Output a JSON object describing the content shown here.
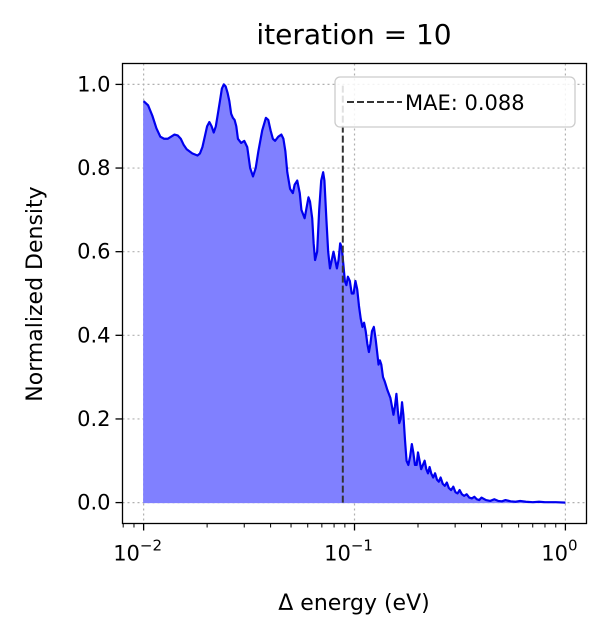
{
  "chart_data": {
    "type": "area",
    "title": "iteration = 10",
    "xlabel": "Δ energy (eV)",
    "ylabel": "Normalized Density",
    "xscale": "log",
    "xlim": [
      0.00794,
      1.259
    ],
    "ylim": [
      -0.05,
      1.05
    ],
    "xticks": [
      {
        "value": 0.01,
        "base": "10",
        "exp": "−2"
      },
      {
        "value": 0.1,
        "base": "10",
        "exp": "−1"
      },
      {
        "value": 1,
        "base": "10",
        "exp": "0"
      }
    ],
    "yticks": [
      {
        "value": 0.0,
        "label": "0.0"
      },
      {
        "value": 0.2,
        "label": "0.2"
      },
      {
        "value": 0.4,
        "label": "0.4"
      },
      {
        "value": 0.6,
        "label": "0.6"
      },
      {
        "value": 0.8,
        "label": "0.8"
      },
      {
        "value": 1.0,
        "label": "1.0"
      }
    ],
    "grid": true,
    "legend_position": "top-right",
    "mae_line": {
      "x": 0.088,
      "label": "MAE: 0.088",
      "color": "#333333"
    },
    "series": [
      {
        "line_color": "#0000ee",
        "fill_color": "#8080ff",
        "points": [
          [
            0.01,
            0.96
          ],
          [
            0.0105,
            0.95
          ],
          [
            0.011,
            0.925
          ],
          [
            0.0115,
            0.895
          ],
          [
            0.012,
            0.875
          ],
          [
            0.0125,
            0.87
          ],
          [
            0.013,
            0.87
          ],
          [
            0.0135,
            0.875
          ],
          [
            0.014,
            0.88
          ],
          [
            0.0145,
            0.878
          ],
          [
            0.015,
            0.87
          ],
          [
            0.0155,
            0.855
          ],
          [
            0.016,
            0.845
          ],
          [
            0.017,
            0.835
          ],
          [
            0.018,
            0.83
          ],
          [
            0.0185,
            0.835
          ],
          [
            0.019,
            0.85
          ],
          [
            0.0195,
            0.875
          ],
          [
            0.02,
            0.9
          ],
          [
            0.0205,
            0.91
          ],
          [
            0.021,
            0.9
          ],
          [
            0.0215,
            0.885
          ],
          [
            0.022,
            0.9
          ],
          [
            0.0225,
            0.93
          ],
          [
            0.023,
            0.96
          ],
          [
            0.0235,
            0.99
          ],
          [
            0.024,
            1.0
          ],
          [
            0.0245,
            0.995
          ],
          [
            0.025,
            0.98
          ],
          [
            0.0255,
            0.96
          ],
          [
            0.026,
            0.93
          ],
          [
            0.0265,
            0.92
          ],
          [
            0.027,
            0.915
          ],
          [
            0.0275,
            0.9
          ],
          [
            0.028,
            0.87
          ],
          [
            0.029,
            0.86
          ],
          [
            0.03,
            0.865
          ],
          [
            0.031,
            0.85
          ],
          [
            0.032,
            0.8
          ],
          [
            0.033,
            0.78
          ],
          [
            0.034,
            0.8
          ],
          [
            0.035,
            0.84
          ],
          [
            0.0365,
            0.89
          ],
          [
            0.038,
            0.92
          ],
          [
            0.039,
            0.915
          ],
          [
            0.04,
            0.89
          ],
          [
            0.041,
            0.87
          ],
          [
            0.042,
            0.865
          ],
          [
            0.0435,
            0.875
          ],
          [
            0.045,
            0.88
          ],
          [
            0.046,
            0.87
          ],
          [
            0.047,
            0.84
          ],
          [
            0.048,
            0.79
          ],
          [
            0.0495,
            0.75
          ],
          [
            0.051,
            0.74
          ],
          [
            0.052,
            0.76
          ],
          [
            0.0535,
            0.77
          ],
          [
            0.055,
            0.74
          ],
          [
            0.056,
            0.7
          ],
          [
            0.058,
            0.68
          ],
          [
            0.059,
            0.7
          ],
          [
            0.0605,
            0.73
          ],
          [
            0.0615,
            0.72
          ],
          [
            0.063,
            0.68
          ],
          [
            0.064,
            0.62
          ],
          [
            0.065,
            0.58
          ],
          [
            0.0665,
            0.6
          ],
          [
            0.068,
            0.7
          ],
          [
            0.0695,
            0.77
          ],
          [
            0.071,
            0.79
          ],
          [
            0.072,
            0.77
          ],
          [
            0.0735,
            0.68
          ],
          [
            0.075,
            0.6
          ],
          [
            0.0765,
            0.56
          ],
          [
            0.078,
            0.58
          ],
          [
            0.0795,
            0.6
          ],
          [
            0.081,
            0.58
          ],
          [
            0.0825,
            0.56
          ],
          [
            0.084,
            0.58
          ],
          [
            0.0855,
            0.62
          ],
          [
            0.087,
            0.61
          ],
          [
            0.0885,
            0.57
          ],
          [
            0.09,
            0.53
          ],
          [
            0.0915,
            0.52
          ],
          [
            0.093,
            0.54
          ],
          [
            0.095,
            0.53
          ],
          [
            0.097,
            0.5
          ],
          [
            0.099,
            0.5
          ],
          [
            0.101,
            0.53
          ],
          [
            0.103,
            0.51
          ],
          [
            0.105,
            0.47
          ],
          [
            0.107,
            0.44
          ],
          [
            0.109,
            0.42
          ],
          [
            0.111,
            0.43
          ],
          [
            0.113,
            0.41
          ],
          [
            0.115,
            0.38
          ],
          [
            0.117,
            0.36
          ],
          [
            0.119,
            0.38
          ],
          [
            0.121,
            0.41
          ],
          [
            0.1235,
            0.42
          ],
          [
            0.126,
            0.39
          ],
          [
            0.128,
            0.36
          ],
          [
            0.13,
            0.33
          ],
          [
            0.132,
            0.34
          ],
          [
            0.134,
            0.33
          ],
          [
            0.1365,
            0.3
          ],
          [
            0.139,
            0.29
          ],
          [
            0.141,
            0.28
          ],
          [
            0.143,
            0.27
          ],
          [
            0.1455,
            0.26
          ],
          [
            0.148,
            0.25
          ],
          [
            0.1505,
            0.23
          ],
          [
            0.153,
            0.21
          ],
          [
            0.1555,
            0.23
          ],
          [
            0.158,
            0.26
          ],
          [
            0.1605,
            0.22
          ],
          [
            0.163,
            0.19
          ],
          [
            0.1655,
            0.2
          ],
          [
            0.168,
            0.24
          ],
          [
            0.1705,
            0.21
          ],
          [
            0.1735,
            0.15
          ],
          [
            0.1765,
            0.1
          ],
          [
            0.18,
            0.09
          ],
          [
            0.1835,
            0.11
          ],
          [
            0.187,
            0.14
          ],
          [
            0.19,
            0.12
          ],
          [
            0.1935,
            0.09
          ],
          [
            0.197,
            0.09
          ],
          [
            0.2,
            0.12
          ],
          [
            0.2035,
            0.1
          ],
          [
            0.207,
            0.08
          ],
          [
            0.211,
            0.09
          ],
          [
            0.215,
            0.1
          ],
          [
            0.219,
            0.08
          ],
          [
            0.223,
            0.07
          ],
          [
            0.227,
            0.085
          ],
          [
            0.231,
            0.07
          ],
          [
            0.236,
            0.06
          ],
          [
            0.241,
            0.07
          ],
          [
            0.246,
            0.055
          ],
          [
            0.251,
            0.05
          ],
          [
            0.256,
            0.06
          ],
          [
            0.262,
            0.045
          ],
          [
            0.268,
            0.04
          ],
          [
            0.274,
            0.048
          ],
          [
            0.28,
            0.035
          ],
          [
            0.287,
            0.03
          ],
          [
            0.294,
            0.038
          ],
          [
            0.301,
            0.025
          ],
          [
            0.308,
            0.022
          ],
          [
            0.315,
            0.03
          ],
          [
            0.323,
            0.02
          ],
          [
            0.331,
            0.016
          ],
          [
            0.34,
            0.02
          ],
          [
            0.35,
            0.012
          ],
          [
            0.36,
            0.01
          ],
          [
            0.37,
            0.014
          ],
          [
            0.38,
            0.008
          ],
          [
            0.39,
            0.006
          ],
          [
            0.4,
            0.012
          ],
          [
            0.42,
            0.006
          ],
          [
            0.44,
            0.004
          ],
          [
            0.46,
            0.008
          ],
          [
            0.48,
            0.004
          ],
          [
            0.5,
            0.003
          ],
          [
            0.52,
            0.006
          ],
          [
            0.55,
            0.003
          ],
          [
            0.58,
            0.002
          ],
          [
            0.61,
            0.004
          ],
          [
            0.65,
            0.002
          ],
          [
            0.7,
            0.001
          ],
          [
            0.75,
            0.002
          ],
          [
            0.8,
            0.001
          ],
          [
            0.85,
            0.001
          ],
          [
            0.9,
            0.001
          ],
          [
            1.0,
            0.0
          ]
        ]
      }
    ]
  }
}
